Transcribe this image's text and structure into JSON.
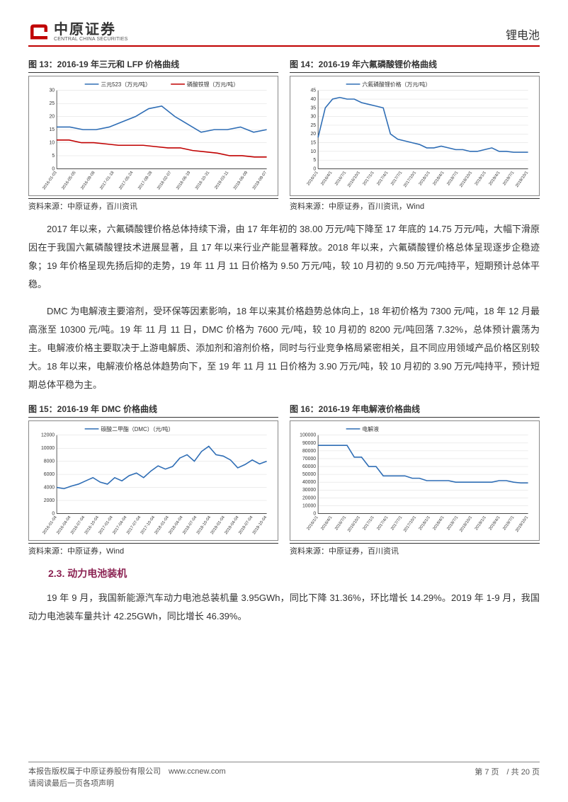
{
  "header": {
    "logo_cn": "中原证券",
    "logo_en": "CENTRAL CHINA SECURITIES",
    "category": "锂电池"
  },
  "chart13": {
    "title": "图 13：2016-19 年三元和 LFP 价格曲线",
    "source": "资料来源：中原证券，百川资讯",
    "type": "line",
    "series": [
      {
        "name": "三元523（万元/吨）",
        "color": "#2e6db5"
      },
      {
        "name": "磷酸铁锂（万元/吨）",
        "color": "#c00000"
      }
    ],
    "ylim": [
      0,
      30
    ],
    "ytick_step": 5,
    "yticks": [
      "0",
      "5",
      "10",
      "15",
      "20",
      "25",
      "30"
    ],
    "xlabels": [
      "2016-01-03",
      "2016-05-05",
      "2016-09-08",
      "2017-01-18",
      "2017-05-24",
      "2017-09-28",
      "2018-02-07",
      "2018-06-19",
      "2018-10-31",
      "2019-03-11",
      "2019-06-09",
      "2019-09-07"
    ],
    "data1": [
      16,
      16,
      15,
      15,
      16,
      18,
      20,
      23,
      24,
      20,
      17,
      14,
      15,
      15,
      16,
      14,
      15
    ],
    "data2": [
      11,
      11,
      10,
      10,
      9.5,
      9,
      9,
      9,
      8.5,
      8,
      8,
      7,
      6.5,
      6,
      5,
      5,
      4.5,
      4.5
    ],
    "background_color": "#ffffff",
    "grid_color": "#d9d9d9",
    "label_fontsize": 7
  },
  "chart14": {
    "title": "图 14：2016-19 年六氟磷酸锂价格曲线",
    "source": "资料来源：中原证券，百川资讯，Wind",
    "type": "line",
    "series": [
      {
        "name": "六氟磷酸锂价格（万元/吨）",
        "color": "#2e6db5"
      }
    ],
    "ylim": [
      0,
      45
    ],
    "ytick_step": 5,
    "yticks": [
      "0",
      "5",
      "10",
      "15",
      "20",
      "25",
      "30",
      "35",
      "40",
      "45"
    ],
    "xlabels": [
      "2016/1/1",
      "2016/4/1",
      "2016/7/1",
      "2016/10/1",
      "2017/1/1",
      "2017/4/1",
      "2017/7/1",
      "2017/10/1",
      "2018/1/1",
      "2018/4/1",
      "2018/7/1",
      "2018/10/1",
      "2019/1/1",
      "2019/4/1",
      "2019/7/1",
      "2019/10/1"
    ],
    "data1": [
      18,
      35,
      40,
      41,
      40,
      40,
      38,
      37,
      36,
      35,
      20,
      17,
      16,
      15,
      14,
      12,
      12,
      13,
      12,
      11,
      11,
      10,
      10,
      11,
      12,
      10,
      10,
      9.5,
      9.5,
      9.5
    ],
    "background_color": "#ffffff",
    "grid_color": "#d9d9d9",
    "label_fontsize": 7
  },
  "para1": "2017 年以来，六氟磷酸锂价格总体持续下滑，由 17 年年初的 38.00 万元/吨下降至 17 年底的 14.75 万元/吨，大幅下滑原因在于我国六氟磷酸锂技术进展显著，且 17 年以来行业产能显著释放。2018 年以来，六氟磷酸锂价格总体呈现逐步企稳迹象；19 年价格呈现先扬后抑的走势，19 年 11 月 11 日价格为 9.50 万元/吨，较 10 月初的 9.50 万元/吨持平，短期预计总体平稳。",
  "para2": "DMC 为电解液主要溶剂，受环保等因素影响，18 年以来其价格趋势总体向上，18 年初价格为 7300 元/吨，18 年 12 月最高涨至 10300 元/吨。19 年 11 月 11 日，DMC 价格为 7600 元/吨，较 10 月初的 8200 元/吨回落 7.32%，总体预计震荡为主。电解液价格主要取决于上游电解质、添加剂和溶剂价格，同时与行业竞争格局紧密相关，且不同应用领域产品价格区别较大。18 年以来，电解液价格总体趋势向下，至 19 年 11 月 11 日价格为 3.90 万元/吨，较 10 月初的 3.90 万元/吨持平，预计短期总体平稳为主。",
  "chart15": {
    "title": "图 15：2016-19 年 DMC 价格曲线",
    "source": "资料来源：中原证券，Wind",
    "type": "line",
    "series": [
      {
        "name": "碳酸二甲酯（DMC）（元/吨）",
        "color": "#2e6db5"
      }
    ],
    "ylim": [
      0,
      12000
    ],
    "ytick_step": 2000,
    "yticks": [
      "0",
      "2000",
      "4000",
      "6000",
      "8000",
      "10000",
      "12000"
    ],
    "xlabels": [
      "2016-01-04",
      "2016-04-04",
      "2016-07-04",
      "2016-10-04",
      "2017-01-04",
      "2017-04-04",
      "2017-07-04",
      "2017-10-04",
      "2018-01-04",
      "2018-04-04",
      "2018-07-04",
      "2018-10-04",
      "2019-01-04",
      "2019-04-04",
      "2019-07-04",
      "2019-10-04"
    ],
    "data1": [
      4000,
      3800,
      4200,
      4500,
      5000,
      5500,
      4800,
      4500,
      5500,
      5000,
      5800,
      6200,
      5500,
      6500,
      7300,
      6800,
      7200,
      8500,
      9000,
      8000,
      9500,
      10300,
      9000,
      8800,
      8200,
      7000,
      7500,
      8200,
      7600,
      8000
    ],
    "background_color": "#ffffff",
    "grid_color": "#d9d9d9",
    "label_fontsize": 7
  },
  "chart16": {
    "title": "图 16：2016-19 年电解液价格曲线",
    "source": "资料来源：中原证券，百川资讯",
    "type": "line",
    "series": [
      {
        "name": "电解液",
        "color": "#2e6db5"
      }
    ],
    "ylim": [
      0,
      100000
    ],
    "ytick_step": 10000,
    "yticks": [
      "0",
      "10000",
      "20000",
      "30000",
      "40000",
      "50000",
      "60000",
      "70000",
      "80000",
      "90000",
      "100000"
    ],
    "xlabels": [
      "2016/1/1",
      "2016/4/1",
      "2016/7/1",
      "2016/10/1",
      "2017/1/1",
      "2017/4/1",
      "2017/7/1",
      "2017/10/1",
      "2018/1/1",
      "2018/4/1",
      "2018/7/1",
      "2018/10/1",
      "2019/1/1",
      "2019/4/1",
      "2019/7/1",
      "2019/10/1"
    ],
    "data1": [
      87000,
      87000,
      87000,
      87000,
      87000,
      72000,
      72000,
      60000,
      60000,
      48000,
      48000,
      48000,
      48000,
      45000,
      45000,
      42000,
      42000,
      42000,
      42000,
      40000,
      40000,
      40000,
      40000,
      40000,
      40000,
      42000,
      42000,
      40000,
      39000,
      39000
    ],
    "background_color": "#ffffff",
    "grid_color": "#d9d9d9",
    "label_fontsize": 7
  },
  "section_heading": "2.3. 动力电池装机",
  "para3": "19 年 9 月，我国新能源汽车动力电池总装机量 3.95GWh，同比下降 31.36%，环比增长 14.29%。2019 年 1-9 月，我国动力电池装车量共计 42.25GWh，同比增长 46.39%。",
  "footer": {
    "line1": "本报告版权属于中原证券股份有限公司　www.ccnew.com",
    "line2": "请阅读最后一页各项声明",
    "page": "第 7 页　/ 共 20 页"
  }
}
